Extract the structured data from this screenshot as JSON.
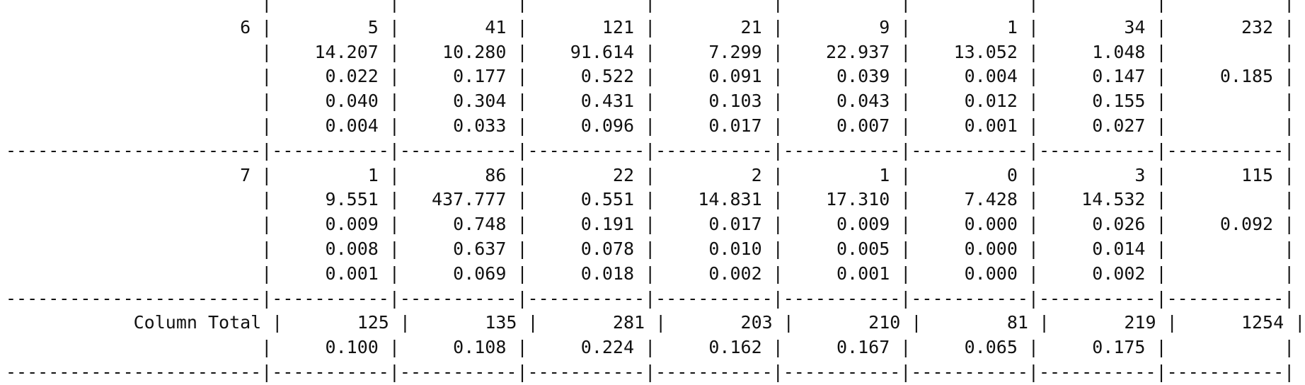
{
  "terminal": {
    "lines": [
      "                        |           |           |           |           |           |           |           |           |",
      "                      6 |         5 |        41 |       121 |        21 |         9 |         1 |        34 |       232 |",
      "                        |    14.207 |    10.280 |    91.614 |     7.299 |    22.937 |    13.052 |     1.048 |           |",
      "                        |     0.022 |     0.177 |     0.522 |     0.091 |     0.039 |     0.004 |     0.147 |     0.185 |",
      "                        |     0.040 |     0.304 |     0.431 |     0.103 |     0.043 |     0.012 |     0.155 |           |",
      "                        |     0.004 |     0.033 |     0.096 |     0.017 |     0.007 |     0.001 |     0.027 |           |",
      "------------------------|-----------|-----------|-----------|-----------|-----------|-----------|-----------|-----------|",
      "                      7 |         1 |        86 |        22 |         2 |         1 |         0 |         3 |       115 |",
      "                        |     9.551 |   437.777 |     0.551 |    14.831 |    17.310 |     7.428 |    14.532 |           |",
      "                        |     0.009 |     0.748 |     0.191 |     0.017 |     0.009 |     0.000 |     0.026 |     0.092 |",
      "                        |     0.008 |     0.637 |     0.078 |     0.010 |     0.005 |     0.000 |     0.014 |           |",
      "                        |     0.001 |     0.069 |     0.018 |     0.002 |     0.001 |     0.000 |     0.002 |           |",
      "------------------------|-----------|-----------|-----------|-----------|-----------|-----------|-----------|-----------|",
      "            Column Total |       125 |       135 |       281 |       203 |       210 |        81 |       219 |      1254 |",
      "                        |     0.100 |     0.108 |     0.224 |     0.162 |     0.167 |     0.065 |     0.175 |           |",
      "------------------------|-----------|-----------|-----------|-----------|-----------|-----------|-----------|-----------|"
    ]
  }
}
